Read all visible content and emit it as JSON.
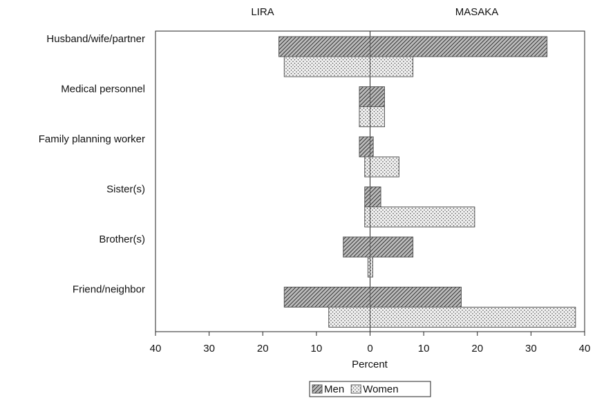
{
  "chart_data": {
    "type": "butterfly-bar",
    "groups": [
      "LIRA",
      "MASAKA"
    ],
    "categories": [
      "Husband/wife/partner",
      "Medical personnel",
      "Family planning worker",
      "Sister(s)",
      "Brother(s)",
      "Friend/neighbor"
    ],
    "series": [
      {
        "name": "Men",
        "color": "#555555",
        "pattern": "hatch",
        "values": [
          [
            -17,
            33
          ],
          [
            -2,
            2.7
          ],
          [
            -2,
            0.6
          ],
          [
            -1,
            2
          ],
          [
            -5,
            8
          ],
          [
            -16,
            17
          ]
        ]
      },
      {
        "name": "Women",
        "color": "#555555",
        "pattern": "dots",
        "values": [
          [
            -16,
            8
          ],
          [
            -2,
            2.7
          ],
          [
            -1,
            5.4
          ],
          [
            -1,
            19.5
          ],
          [
            -0.4,
            0.5
          ],
          [
            -7.7,
            38.3
          ]
        ]
      }
    ],
    "xlabel": "Percent",
    "xlim": [
      -40,
      40
    ],
    "xticks": [
      {
        "value": -40,
        "label": "40"
      },
      {
        "value": -30,
        "label": "30"
      },
      {
        "value": -20,
        "label": "20"
      },
      {
        "value": -10,
        "label": "10"
      },
      0,
      10,
      20,
      30,
      40
    ],
    "legend": "bottom"
  }
}
